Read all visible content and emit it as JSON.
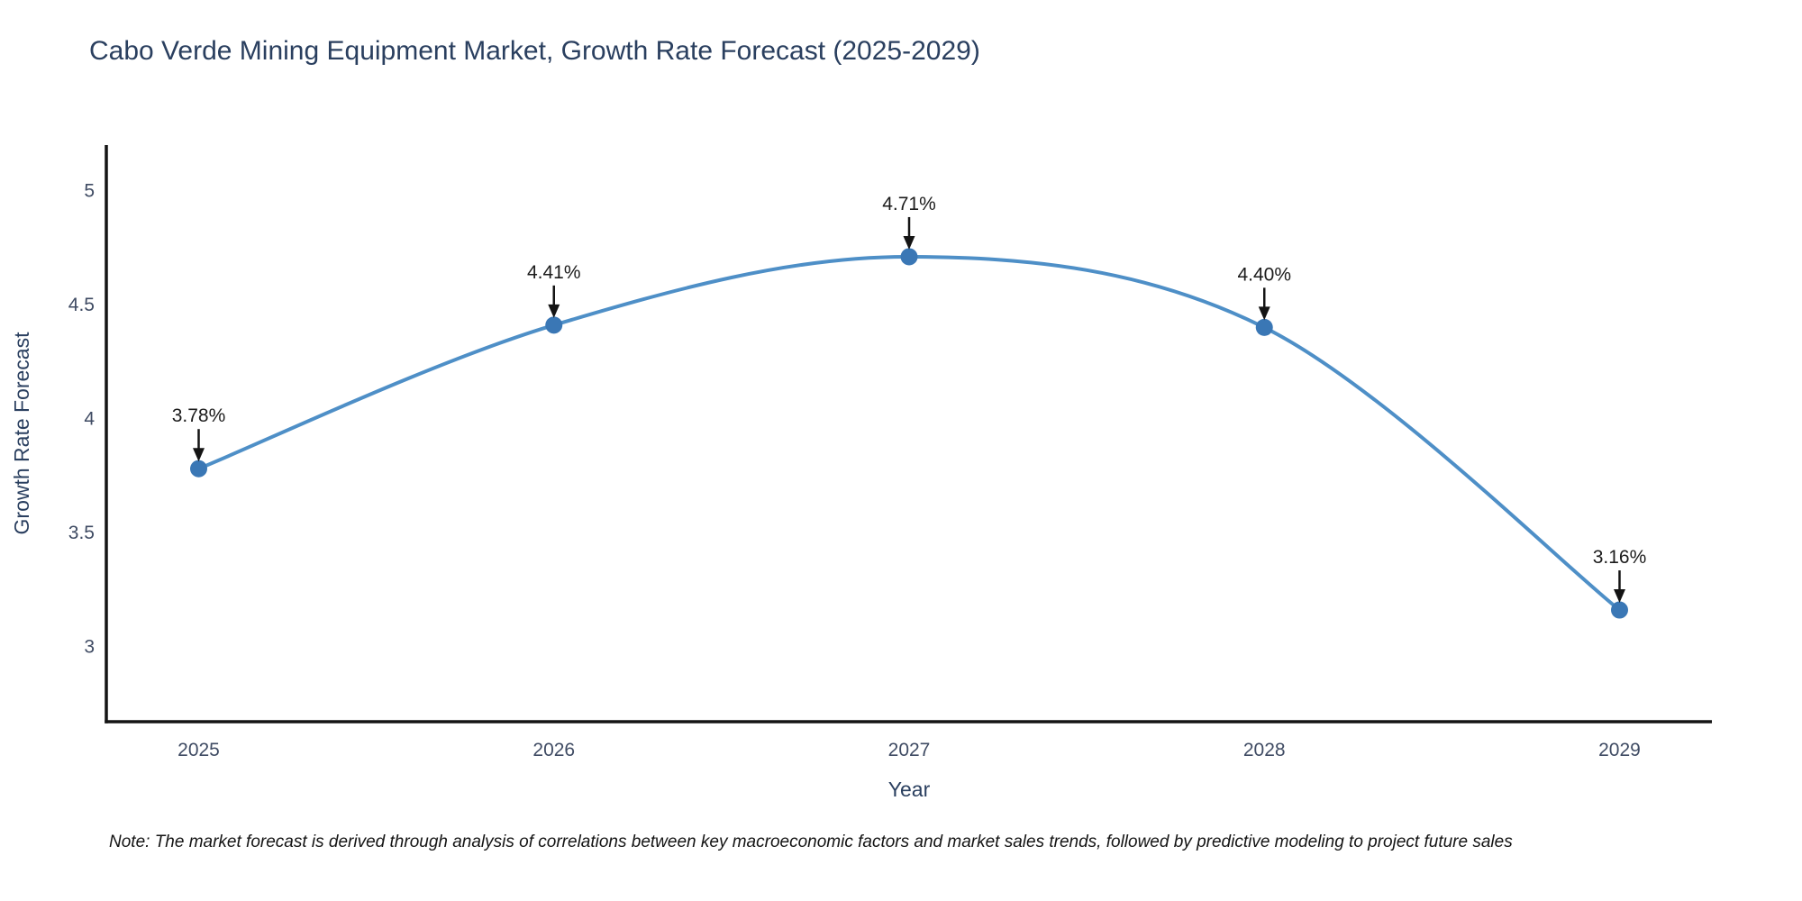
{
  "page": {
    "background_color": "#ffffff"
  },
  "footer": {
    "note": "Note: The market forecast is derived through analysis of correlations between key macroeconomic factors and market sales trends, followed by predictive modeling to project future sales"
  },
  "chart_data": {
    "type": "line",
    "line_shape": "spline",
    "title": "Cabo Verde Mining Equipment Market, Growth Rate Forecast (2025-2029)",
    "xlabel": "Year",
    "ylabel": "Growth Rate Forecast",
    "x": [
      2025,
      2026,
      2027,
      2028,
      2029
    ],
    "x_tick_labels": [
      "2025",
      "2026",
      "2027",
      "2028",
      "2029"
    ],
    "values": [
      3.78,
      4.41,
      4.71,
      4.4,
      3.16
    ],
    "point_labels": [
      "3.78%",
      "4.41%",
      "4.71%",
      "4.40%",
      "3.16%"
    ],
    "yticks": [
      3,
      3.5,
      4,
      4.5,
      5
    ],
    "y_tick_labels": [
      "3",
      "3.5",
      "4",
      "4.5",
      "5"
    ],
    "xlim": [
      2024.74,
      2029.26
    ],
    "ylim": [
      2.67,
      5.2
    ],
    "grid": false,
    "legend": false,
    "colors": {
      "line": "#4e8fc7",
      "marker": "#3a77b5",
      "axis_line": "#141414",
      "tick_text": "#3f4b63",
      "title_text": "#2a3f5f",
      "annotation_text": "#1c1c1c",
      "annotation_arrow": "#141414",
      "footnote_text": "#141414"
    }
  }
}
